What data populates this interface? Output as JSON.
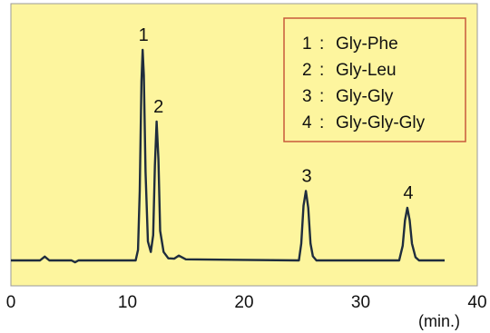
{
  "chart_data": {
    "type": "line",
    "title": "",
    "xlabel": "(min.)",
    "ylabel": "",
    "xlim": [
      0,
      40
    ],
    "ylim": [
      0,
      100
    ],
    "x_ticks": [
      "0",
      "10",
      "20",
      "30",
      "40"
    ],
    "grid": false,
    "legend_position": "top-right",
    "colors": {
      "plot_background": "#fdf59e",
      "trace": "#1f2d3d",
      "legend_border": "#c85a3c",
      "legend_background": "#fdf59e"
    },
    "peaks": [
      {
        "label": "1",
        "x": 11.3,
        "height": 100,
        "compound": "Gly-Phe"
      },
      {
        "label": "2",
        "x": 12.5,
        "height": 66,
        "compound": "Gly-Leu"
      },
      {
        "label": "3",
        "x": 25.3,
        "height": 33,
        "compound": "Gly-Gly"
      },
      {
        "label": "4",
        "x": 34.0,
        "height": 25,
        "compound": "Gly-Gly-Gly"
      }
    ],
    "legend": [
      {
        "number": "1",
        "compound": "Gly-Phe"
      },
      {
        "number": "2",
        "compound": "Gly-Leu"
      },
      {
        "number": "3",
        "compound": "Gly-Gly"
      },
      {
        "number": "4",
        "compound": "Gly-Gly-Gly"
      }
    ],
    "series": [
      {
        "x": [
          0,
          2.5,
          2.9,
          3.3,
          5.2,
          5.5,
          5.8,
          10.7,
          10.9,
          11.05,
          11.2,
          11.3,
          11.4,
          11.55,
          11.75,
          12.0,
          12.2,
          12.35,
          12.5,
          12.65,
          12.8,
          13.1,
          13.5,
          14.0,
          14.4,
          15.0,
          24.7,
          24.9,
          25.1,
          25.3,
          25.5,
          25.7,
          25.9,
          26.2,
          33.3,
          33.6,
          33.8,
          34.0,
          34.2,
          34.4,
          34.7,
          35.0,
          37.2
        ],
        "y": [
          0,
          0,
          1.8,
          0,
          0,
          -0.9,
          0,
          0,
          5,
          33,
          85,
          100,
          88,
          42,
          9,
          4,
          12,
          45,
          66,
          48,
          14,
          4,
          1,
          0.8,
          2.3,
          0.5,
          0,
          8,
          26,
          33,
          25,
          8,
          2,
          0,
          0,
          7,
          19,
          25,
          19,
          8,
          1.5,
          0,
          0
        ]
      }
    ]
  }
}
